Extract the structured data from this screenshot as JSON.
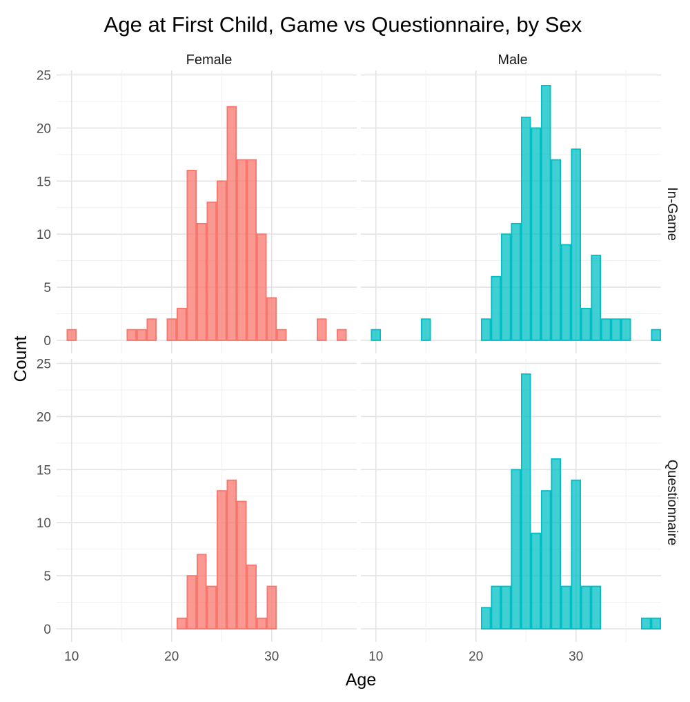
{
  "chart_data": {
    "type": "bar",
    "title": "Age at First Child, Game vs Questionnaire, by Sex",
    "xlabel": "Age",
    "ylabel": "Count",
    "xlim": [
      8.5,
      38.5
    ],
    "ylim": [
      0,
      25
    ],
    "x_ticks": [
      10,
      20,
      30
    ],
    "y_ticks": [
      0,
      5,
      10,
      15,
      20,
      25
    ],
    "bin_width": 1,
    "grid": true,
    "column_facets": [
      "Female",
      "Male"
    ],
    "row_facets": [
      "In-Game",
      "Questionnaire"
    ],
    "colors": {
      "Female": "#F8766D",
      "Male": "#00BFC4"
    },
    "panels": [
      {
        "sex": "Female",
        "source": "In-Game",
        "bins": [
          {
            "x": 10,
            "count": 1
          },
          {
            "x": 16,
            "count": 1
          },
          {
            "x": 17,
            "count": 1
          },
          {
            "x": 18,
            "count": 2
          },
          {
            "x": 20,
            "count": 2
          },
          {
            "x": 21,
            "count": 3
          },
          {
            "x": 22,
            "count": 16
          },
          {
            "x": 23,
            "count": 11
          },
          {
            "x": 24,
            "count": 13
          },
          {
            "x": 25,
            "count": 15
          },
          {
            "x": 26,
            "count": 22
          },
          {
            "x": 27,
            "count": 17
          },
          {
            "x": 28,
            "count": 17
          },
          {
            "x": 29,
            "count": 10
          },
          {
            "x": 30,
            "count": 4
          },
          {
            "x": 31,
            "count": 1
          },
          {
            "x": 35,
            "count": 2
          },
          {
            "x": 37,
            "count": 1
          }
        ]
      },
      {
        "sex": "Male",
        "source": "In-Game",
        "bins": [
          {
            "x": 10,
            "count": 1
          },
          {
            "x": 15,
            "count": 2
          },
          {
            "x": 21,
            "count": 2
          },
          {
            "x": 22,
            "count": 6
          },
          {
            "x": 23,
            "count": 10
          },
          {
            "x": 24,
            "count": 11
          },
          {
            "x": 25,
            "count": 21
          },
          {
            "x": 26,
            "count": 20
          },
          {
            "x": 27,
            "count": 24
          },
          {
            "x": 28,
            "count": 17
          },
          {
            "x": 29,
            "count": 9
          },
          {
            "x": 30,
            "count": 18
          },
          {
            "x": 31,
            "count": 3
          },
          {
            "x": 32,
            "count": 8
          },
          {
            "x": 33,
            "count": 2
          },
          {
            "x": 34,
            "count": 2
          },
          {
            "x": 35,
            "count": 2
          },
          {
            "x": 38,
            "count": 1
          }
        ]
      },
      {
        "sex": "Female",
        "source": "Questionnaire",
        "bins": [
          {
            "x": 21,
            "count": 1
          },
          {
            "x": 22,
            "count": 5
          },
          {
            "x": 23,
            "count": 7
          },
          {
            "x": 24,
            "count": 4
          },
          {
            "x": 25,
            "count": 13
          },
          {
            "x": 26,
            "count": 14
          },
          {
            "x": 27,
            "count": 12
          },
          {
            "x": 28,
            "count": 6
          },
          {
            "x": 29,
            "count": 1
          },
          {
            "x": 30,
            "count": 4
          }
        ]
      },
      {
        "sex": "Male",
        "source": "Questionnaire",
        "bins": [
          {
            "x": 21,
            "count": 2
          },
          {
            "x": 22,
            "count": 4
          },
          {
            "x": 23,
            "count": 4
          },
          {
            "x": 24,
            "count": 15
          },
          {
            "x": 25,
            "count": 24
          },
          {
            "x": 26,
            "count": 9
          },
          {
            "x": 27,
            "count": 13
          },
          {
            "x": 28,
            "count": 16
          },
          {
            "x": 29,
            "count": 4
          },
          {
            "x": 30,
            "count": 14
          },
          {
            "x": 31,
            "count": 4
          },
          {
            "x": 32,
            "count": 4
          },
          {
            "x": 37,
            "count": 1
          },
          {
            "x": 38,
            "count": 1
          }
        ]
      }
    ]
  }
}
